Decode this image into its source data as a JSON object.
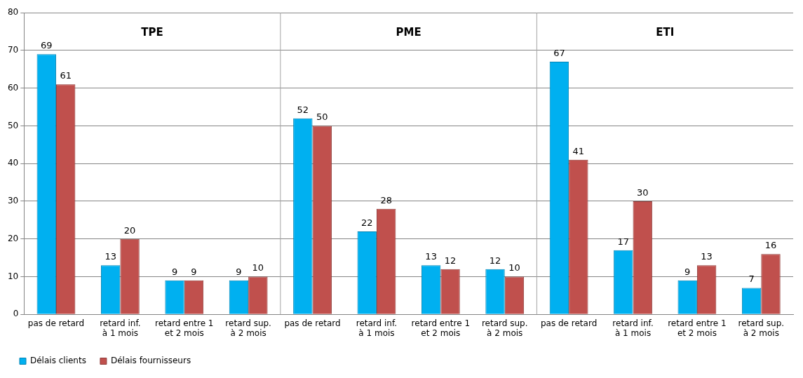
{
  "chart_data": {
    "type": "bar",
    "categories": [
      "pas de retard",
      "retard inf.\nà 1 mois",
      "retard entre 1\net 2 mois",
      "retard sup.\nà 2 mois",
      "pas de retard",
      "retard inf.\nà 1 mois",
      "retard entre 1\net 2 mois",
      "retard sup.\nà 2 mois",
      "pas de retard",
      "retard inf.\nà 1 mois",
      "retard entre 1\net 2 mois",
      "retard sup.\nà 2 mois"
    ],
    "series": [
      {
        "name": "Délais clients",
        "color": "#00b0f0",
        "values": [
          69,
          13,
          9,
          9,
          52,
          22,
          13,
          12,
          67,
          17,
          9,
          7
        ]
      },
      {
        "name": "Délais fournisseurs",
        "color": "#c0504d",
        "values": [
          61,
          20,
          9,
          10,
          50,
          28,
          12,
          10,
          41,
          30,
          13,
          16
        ]
      }
    ],
    "annotations": [
      "TPE",
      "PME",
      "ETI"
    ],
    "ylim": [
      0,
      80
    ],
    "yticks": [
      0,
      10,
      20,
      30,
      40,
      50,
      60,
      70,
      80
    ],
    "grid": "y",
    "legend": "bottom left",
    "data_labels": true
  }
}
